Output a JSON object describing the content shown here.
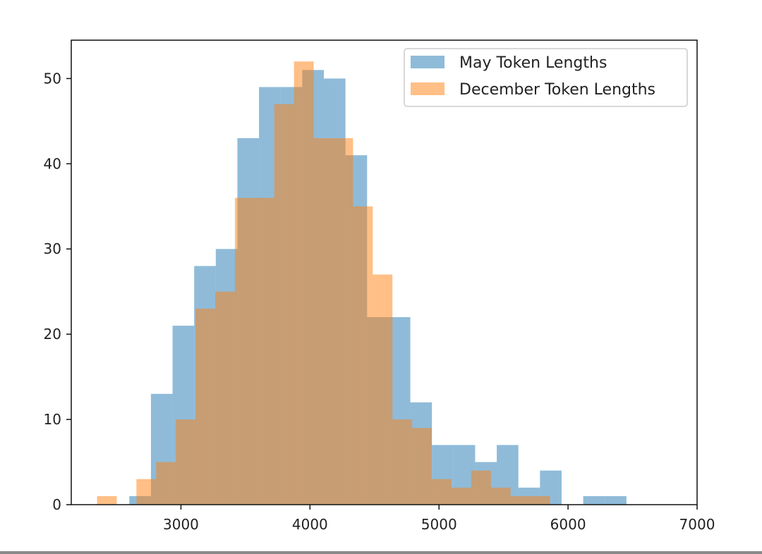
{
  "chart_data": {
    "type": "histogram",
    "title": "",
    "xlabel": "",
    "ylabel": "",
    "xlim": [
      2150,
      7000
    ],
    "ylim": [
      0,
      54.5
    ],
    "grid": false,
    "legend_position": "top-right",
    "xticks": [
      3000,
      4000,
      5000,
      6000,
      7000
    ],
    "yticks": [
      0,
      10,
      20,
      30,
      40,
      50
    ],
    "series": [
      {
        "name": "May Token Lengths",
        "color": "#1f77b4",
        "alpha": 0.5,
        "bin_start": 2600,
        "bin_width": 167.5,
        "counts": [
          1,
          13,
          21,
          28,
          30,
          43,
          49,
          49,
          51,
          50,
          41,
          22,
          22,
          12,
          7,
          7,
          5,
          7,
          2,
          4,
          0,
          1,
          1
        ]
      },
      {
        "name": "December Token Lengths",
        "color": "#ff7f0e",
        "alpha": 0.5,
        "bin_start": 2350,
        "bin_width": 152.6,
        "counts": [
          1,
          0,
          3,
          5,
          10,
          23,
          25,
          36,
          36,
          47,
          52,
          43,
          43,
          35,
          27,
          10,
          9,
          3,
          2,
          4,
          2,
          1,
          1
        ]
      }
    ]
  }
}
